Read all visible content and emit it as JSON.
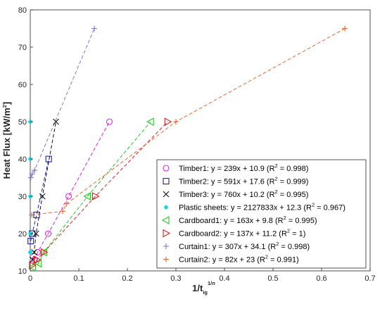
{
  "chart_data": {
    "type": "scatter",
    "xlabel": {
      "base": "1/t",
      "sub": "ig",
      "sup": "1/n"
    },
    "ylabel": "Heat Flux [kW/m",
    "ylabel_sup": "2",
    "ylabel_close": "]",
    "xlim": [
      0,
      0.7
    ],
    "ylim": [
      10,
      80
    ],
    "xticks": [
      "0",
      "0.1",
      "0.2",
      "0.3",
      "0.4",
      "0.5",
      "0.6",
      "0.7"
    ],
    "yticks": [
      "10",
      "20",
      "30",
      "40",
      "50",
      "60",
      "70",
      "80"
    ],
    "grid": false,
    "legend_position": "bottom-right",
    "series": [
      {
        "name": "Timber1",
        "label": "Timber1: y = 239x + 10.9 (R",
        "r2": "0.998",
        "marker": "circle",
        "color": "#e01ee0",
        "x": [
          0.009,
          0.015,
          0.037,
          0.079,
          0.163
        ],
        "y": [
          13,
          15,
          20,
          30,
          50
        ]
      },
      {
        "name": "Timber2",
        "label": "Timber2: y = 591x + 17.6 (R",
        "r2": "0.999",
        "marker": "square",
        "color": "#1f1fb4",
        "x": [
          0.001,
          0.004,
          0.013,
          0.038
        ],
        "y": [
          18,
          20,
          25,
          40
        ]
      },
      {
        "name": "Timber3",
        "label": "Timber3: y = 760x + 10.2 (R",
        "r2": "0.995",
        "marker": "x",
        "color": "#111111",
        "x": [
          0.005,
          0.008,
          0.012,
          0.025,
          0.053
        ],
        "y": [
          13,
          15,
          20,
          30,
          50
        ]
      },
      {
        "name": "Plastic sheets",
        "label": "Plastic sheets: y = 2127833x + 12.3 (R",
        "r2": "0.967",
        "marker": "dot",
        "color": "#19d3e0",
        "x": [
          0.0,
          0.0,
          0.0,
          0.0,
          0.0
        ],
        "y": [
          15,
          20,
          30,
          40,
          50
        ]
      },
      {
        "name": "Cardboard1",
        "label": "Cardboard1: y = 163x + 9.8 (R",
        "r2": "0.995",
        "marker": "triangle-left",
        "color": "#1fcc1f",
        "x": [
          0.005,
          0.017,
          0.028,
          0.118,
          0.248
        ],
        "y": [
          11,
          12,
          15,
          30,
          50
        ]
      },
      {
        "name": "Cardboard2",
        "label": "Cardboard2: y = 137x + 11.2 (R",
        "r2": "1",
        "marker": "triangle-right",
        "color": "#e01f1f",
        "x": [
          0.004,
          0.014,
          0.028,
          0.134,
          0.283
        ],
        "y": [
          11.5,
          13,
          15,
          30,
          50
        ]
      },
      {
        "name": "Curtain1",
        "label": "Curtain1: y = 307x + 34.1 (R",
        "r2": "0.998",
        "marker": "plus",
        "color": "#8a6fd0",
        "x": [
          0.001,
          0.004,
          0.009,
          0.132
        ],
        "y": [
          35,
          36,
          37,
          75
        ]
      },
      {
        "name": "Curtain2",
        "label": "Curtain2: y = 82x + 23 (R",
        "r2": "0.991",
        "marker": "plus",
        "color": "#e06a33",
        "x": [
          0.003,
          0.067,
          0.075,
          0.3,
          0.648
        ],
        "y": [
          25,
          26,
          28,
          50,
          75
        ]
      }
    ],
    "legend_r2_prefix": "2",
    "legend_r2_eq": " = "
  }
}
